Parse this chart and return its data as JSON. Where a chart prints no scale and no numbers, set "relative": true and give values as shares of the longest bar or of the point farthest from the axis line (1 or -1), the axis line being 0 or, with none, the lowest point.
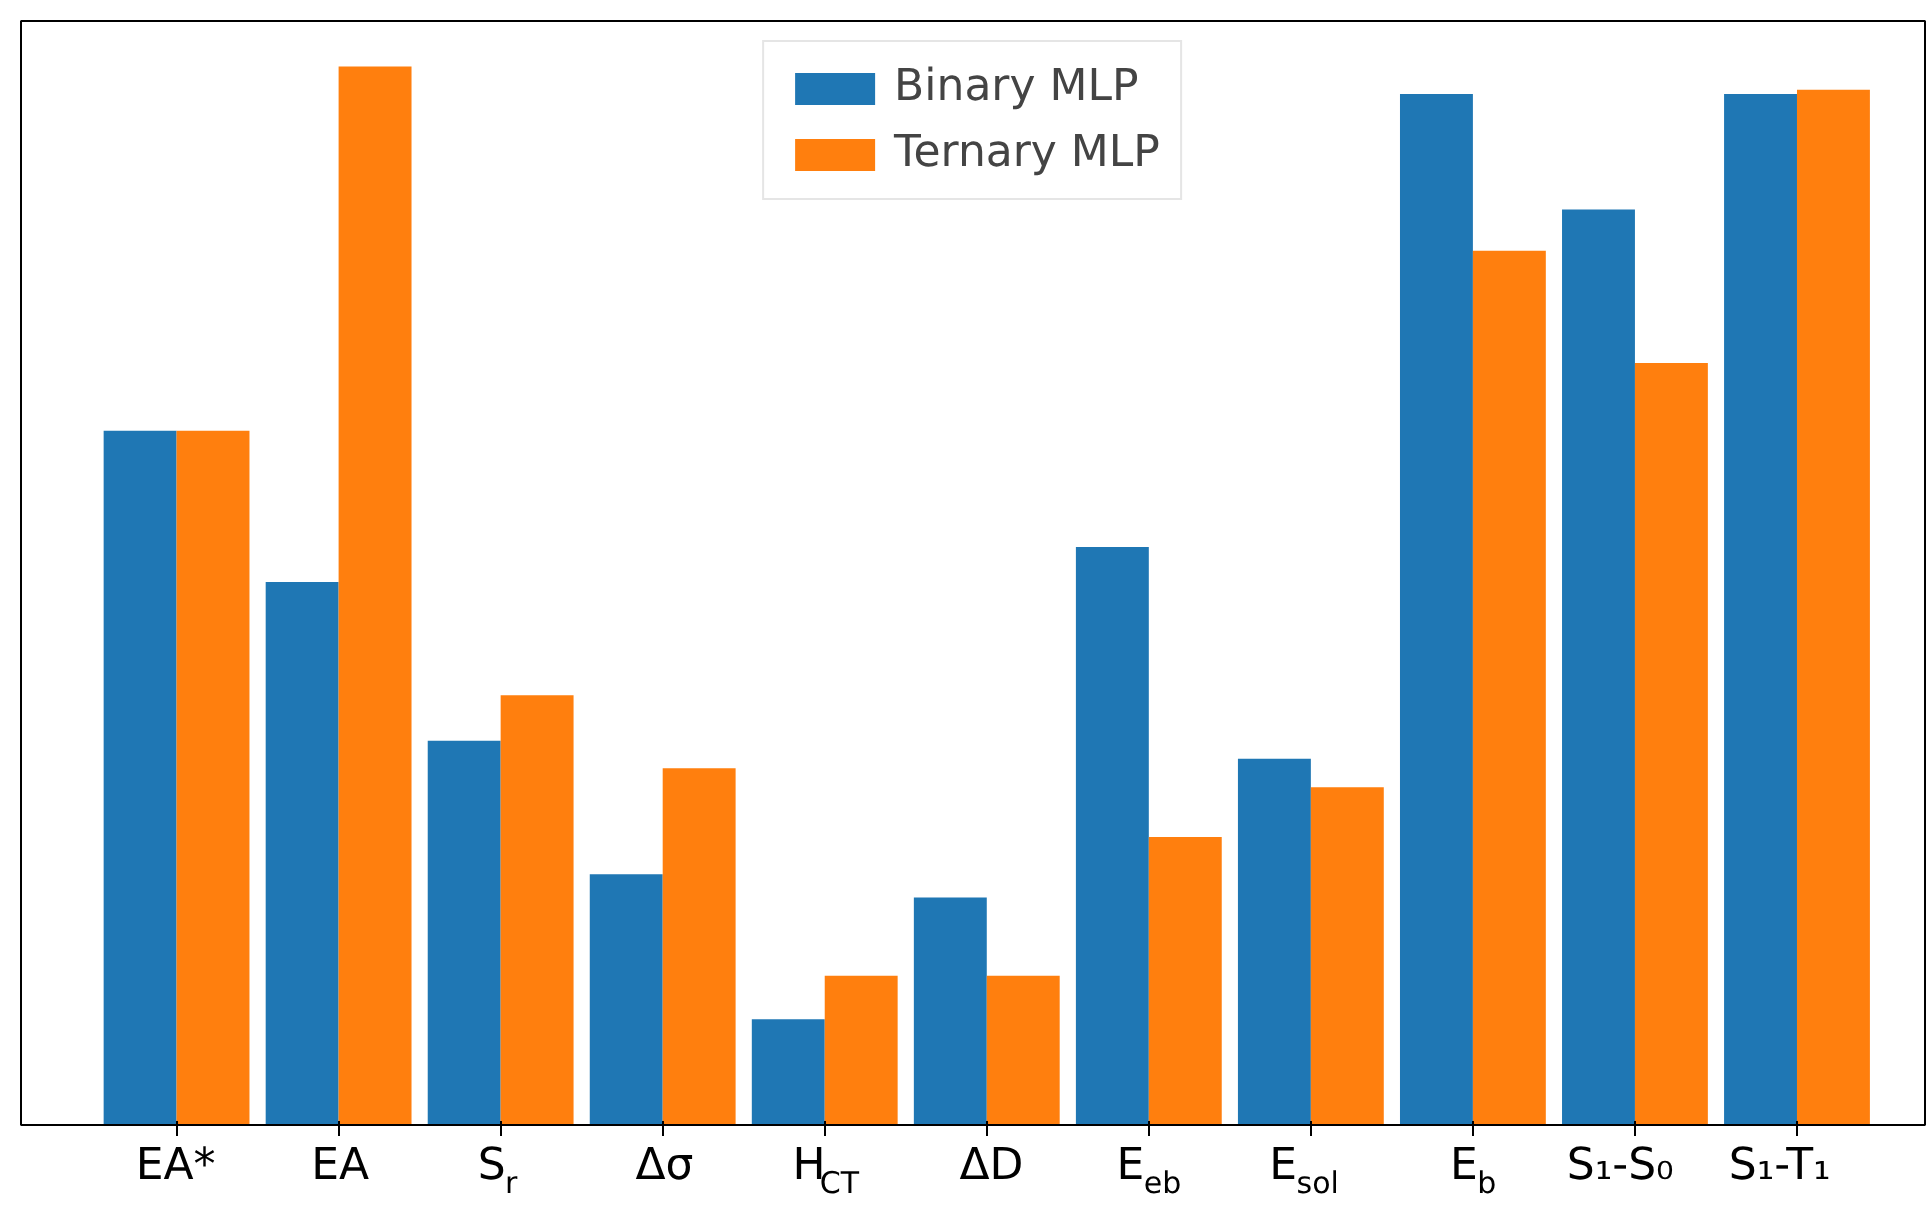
{
  "chart_data": {
    "type": "bar",
    "relative": true,
    "categories": [
      "EA*",
      "EA",
      "S$_{r}$",
      "Δσ",
      "H$_{CT}$",
      "ΔD",
      "E$_{eb}$",
      "E$_{sol}$",
      "E$_{b}$",
      "S₁-S₀",
      "S₁-T₁"
    ],
    "series": [
      {
        "name": "Binary MLP",
        "color": "#1f77b4",
        "values": [
          0.656,
          0.513,
          0.363,
          0.237,
          0.1,
          0.215,
          0.546,
          0.346,
          0.974,
          0.865,
          0.974
        ]
      },
      {
        "name": "Ternary MLP",
        "color": "#ff7f0e",
        "values": [
          0.656,
          1,
          0.406,
          0.337,
          0.141,
          0.141,
          0.272,
          0.319,
          0.826,
          0.72,
          0.978
        ]
      }
    ],
    "legend": "top",
    "grid": false
  }
}
